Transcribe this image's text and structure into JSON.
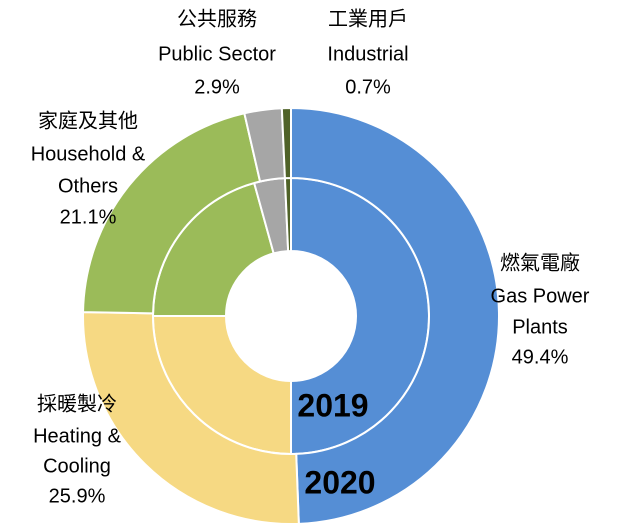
{
  "chart_data": {
    "type": "nested-donut",
    "categories": [
      [
        "燃氣電廠",
        "Gas Power",
        "Plants"
      ],
      [
        "採暖製冷",
        "Heating &",
        "Cooling"
      ],
      [
        "家庭及其他",
        "Household &",
        "Others"
      ],
      [
        "公共服務",
        "Public Sector"
      ],
      [
        "工業用戶",
        "Industrial"
      ]
    ],
    "colors": [
      "#558ed5",
      "#f6d983",
      "#9bbb59",
      "#a6a6a6",
      "#4f6228"
    ],
    "series": [
      {
        "name": "2019",
        "values": [
          50,
          25,
          20.7,
          3.6,
          0.7
        ]
      },
      {
        "name": "2020",
        "values": [
          49.4,
          25.9,
          21.1,
          2.9,
          0.7
        ],
        "value_labels": [
          "49.4%",
          "25.9%",
          "21.1%",
          "2.9%",
          "0.7%"
        ]
      }
    ]
  }
}
